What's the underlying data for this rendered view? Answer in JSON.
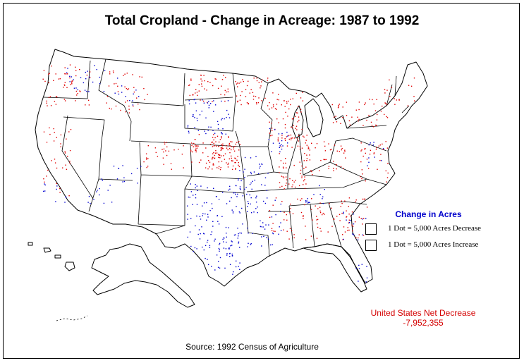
{
  "title": "Total Cropland - Change in Acreage:  1987 to 1992",
  "legend": {
    "title": "Change in Acres",
    "items": [
      {
        "label": "1 Dot = 5,000 Acres Decrease",
        "color": "#e00000"
      },
      {
        "label": "1 Dot = 5,000 Acres Increase",
        "color": "#0000d0"
      }
    ]
  },
  "net": {
    "label": "United States Net Decrease",
    "value": "-7,952,355"
  },
  "source": "Source:  1992 Census of Agriculture",
  "colors": {
    "decrease": "#e00000",
    "increase": "#0000d0",
    "outline": "#000000"
  }
}
